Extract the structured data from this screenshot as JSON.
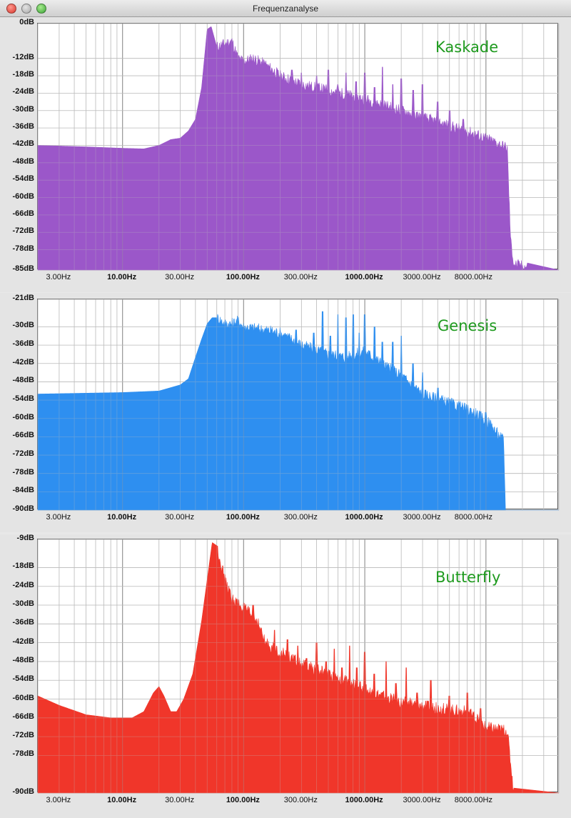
{
  "window": {
    "title": "Frequenzanalyse"
  },
  "colors": {
    "kaskade": "#9b57c9",
    "genesis": "#2e8ff0",
    "butterfly": "#f0362a",
    "legend": "#1e9a1e",
    "grid": "#bdbdbd"
  },
  "chart_data": [
    {
      "type": "area",
      "series": [
        {
          "name": "Kaskade",
          "color": "#9b57c9"
        }
      ],
      "x_scale": "log",
      "xlim": [
        2,
        40000
      ],
      "ylim": [
        -85,
        0
      ],
      "x_ticks": [
        {
          "value": 3,
          "label": "3.00Hz",
          "bold": false
        },
        {
          "value": 10,
          "label": "10.00Hz",
          "bold": true
        },
        {
          "value": 30,
          "label": "30.00Hz",
          "bold": false
        },
        {
          "value": 100,
          "label": "100.00Hz",
          "bold": true
        },
        {
          "value": 300,
          "label": "300.00Hz",
          "bold": false
        },
        {
          "value": 1000,
          "label": "1000.00Hz",
          "bold": true
        },
        {
          "value": 3000,
          "label": "3000.00Hz",
          "bold": false
        },
        {
          "value": 8000,
          "label": "8000.00Hz",
          "bold": false
        }
      ],
      "y_ticks": [
        {
          "value": 0,
          "label": "0dB"
        },
        {
          "value": -12,
          "label": "-12dB"
        },
        {
          "value": -18,
          "label": "-18dB"
        },
        {
          "value": -24,
          "label": "-24dB"
        },
        {
          "value": -30,
          "label": "-30dB"
        },
        {
          "value": -36,
          "label": "-36dB"
        },
        {
          "value": -42,
          "label": "-42dB"
        },
        {
          "value": -48,
          "label": "-48dB"
        },
        {
          "value": -54,
          "label": "-54dB"
        },
        {
          "value": -60,
          "label": "-60dB"
        },
        {
          "value": -66,
          "label": "-66dB"
        },
        {
          "value": -72,
          "label": "-72dB"
        },
        {
          "value": -78,
          "label": "-78dB"
        },
        {
          "value": -85,
          "label": "-85dB"
        }
      ],
      "envelope": [
        [
          2,
          -42
        ],
        [
          5,
          -42.5
        ],
        [
          10,
          -43
        ],
        [
          15,
          -43.2
        ],
        [
          20,
          -42
        ],
        [
          25,
          -40
        ],
        [
          30,
          -39.5
        ],
        [
          35,
          -37
        ],
        [
          40,
          -33
        ],
        [
          45,
          -22
        ],
        [
          50,
          -2
        ],
        [
          54,
          -1
        ],
        [
          60,
          -8
        ],
        [
          70,
          -7
        ],
        [
          80,
          -6
        ],
        [
          90,
          -12
        ],
        [
          100,
          -13
        ],
        [
          120,
          -12
        ],
        [
          150,
          -14
        ],
        [
          200,
          -18
        ],
        [
          300,
          -21
        ],
        [
          500,
          -23
        ],
        [
          1000,
          -26
        ],
        [
          2000,
          -30
        ],
        [
          4000,
          -34
        ],
        [
          8000,
          -38
        ],
        [
          12000,
          -41
        ],
        [
          15000,
          -43
        ],
        [
          16000,
          -75
        ],
        [
          17000,
          -83
        ],
        [
          22000,
          -84
        ],
        [
          40000,
          -85
        ]
      ],
      "peaks": [
        [
          150,
          -14
        ],
        [
          180,
          -18
        ],
        [
          210,
          -20
        ],
        [
          250,
          -16
        ],
        [
          300,
          -17
        ],
        [
          350,
          -22
        ],
        [
          400,
          -18
        ],
        [
          500,
          -16
        ],
        [
          600,
          -21
        ],
        [
          700,
          -17
        ],
        [
          850,
          -20
        ],
        [
          1000,
          -17
        ],
        [
          1200,
          -22
        ],
        [
          1400,
          -15
        ],
        [
          1700,
          -21
        ],
        [
          2000,
          -19
        ],
        [
          2500,
          -23
        ],
        [
          3000,
          -21
        ],
        [
          4000,
          -27
        ],
        [
          5000,
          -30
        ],
        [
          6500,
          -33
        ]
      ]
    },
    {
      "type": "area",
      "series": [
        {
          "name": "Genesis",
          "color": "#2e8ff0"
        }
      ],
      "x_scale": "log",
      "xlim": [
        2,
        40000
      ],
      "ylim": [
        -90,
        -21
      ],
      "x_ticks": [
        {
          "value": 3,
          "label": "3.00Hz",
          "bold": false
        },
        {
          "value": 10,
          "label": "10.00Hz",
          "bold": true
        },
        {
          "value": 30,
          "label": "30.00Hz",
          "bold": false
        },
        {
          "value": 100,
          "label": "100.00Hz",
          "bold": true
        },
        {
          "value": 300,
          "label": "300.00Hz",
          "bold": false
        },
        {
          "value": 1000,
          "label": "1000.00Hz",
          "bold": true
        },
        {
          "value": 3000,
          "label": "3000.00Hz",
          "bold": false
        },
        {
          "value": 8000,
          "label": "8000.00Hz",
          "bold": false
        }
      ],
      "y_ticks": [
        {
          "value": -21,
          "label": "-21dB"
        },
        {
          "value": -30,
          "label": "-30dB"
        },
        {
          "value": -36,
          "label": "-36dB"
        },
        {
          "value": -42,
          "label": "-42dB"
        },
        {
          "value": -48,
          "label": "-48dB"
        },
        {
          "value": -54,
          "label": "-54dB"
        },
        {
          "value": -60,
          "label": "-60dB"
        },
        {
          "value": -66,
          "label": "-66dB"
        },
        {
          "value": -72,
          "label": "-72dB"
        },
        {
          "value": -78,
          "label": "-78dB"
        },
        {
          "value": -84,
          "label": "-84dB"
        },
        {
          "value": -90,
          "label": "-90dB"
        }
      ],
      "envelope": [
        [
          2,
          -52
        ],
        [
          10,
          -51.5
        ],
        [
          20,
          -51
        ],
        [
          30,
          -49
        ],
        [
          35,
          -47
        ],
        [
          40,
          -40
        ],
        [
          45,
          -34
        ],
        [
          50,
          -29
        ],
        [
          55,
          -27
        ],
        [
          60,
          -27
        ],
        [
          70,
          -29
        ],
        [
          80,
          -29
        ],
        [
          90,
          -28
        ],
        [
          100,
          -30
        ],
        [
          150,
          -31
        ],
        [
          200,
          -32
        ],
        [
          300,
          -36
        ],
        [
          500,
          -39
        ],
        [
          700,
          -40
        ],
        [
          1000,
          -38
        ],
        [
          1500,
          -43
        ],
        [
          2000,
          -46
        ],
        [
          3000,
          -52
        ],
        [
          5000,
          -55
        ],
        [
          8000,
          -58
        ],
        [
          11000,
          -62
        ],
        [
          13000,
          -66
        ],
        [
          14000,
          -67
        ],
        [
          14500,
          -90
        ],
        [
          40000,
          -90
        ]
      ],
      "peaks": [
        [
          130,
          -31
        ],
        [
          170,
          -31
        ],
        [
          220,
          -33
        ],
        [
          270,
          -31
        ],
        [
          320,
          -36
        ],
        [
          380,
          -32
        ],
        [
          450,
          -25
        ],
        [
          520,
          -33
        ],
        [
          600,
          -26
        ],
        [
          700,
          -27
        ],
        [
          800,
          -26
        ],
        [
          900,
          -32
        ],
        [
          1000,
          -26
        ],
        [
          1200,
          -30
        ],
        [
          1400,
          -35
        ],
        [
          1700,
          -35
        ],
        [
          2000,
          -33
        ],
        [
          2500,
          -42
        ],
        [
          3000,
          -45
        ],
        [
          4000,
          -50
        ],
        [
          6000,
          -55
        ],
        [
          10000,
          -58
        ]
      ]
    },
    {
      "type": "area",
      "series": [
        {
          "name": "Butterfly",
          "color": "#f0362a"
        }
      ],
      "x_scale": "log",
      "xlim": [
        2,
        40000
      ],
      "ylim": [
        -90,
        -9
      ],
      "x_ticks": [
        {
          "value": 3,
          "label": "3.00Hz",
          "bold": false
        },
        {
          "value": 10,
          "label": "10.00Hz",
          "bold": true
        },
        {
          "value": 30,
          "label": "30.00Hz",
          "bold": false
        },
        {
          "value": 100,
          "label": "100.00Hz",
          "bold": true
        },
        {
          "value": 300,
          "label": "300.00Hz",
          "bold": false
        },
        {
          "value": 1000,
          "label": "1000.00Hz",
          "bold": true
        },
        {
          "value": 3000,
          "label": "3000.00Hz",
          "bold": false
        },
        {
          "value": 8000,
          "label": "8000.00Hz",
          "bold": false
        }
      ],
      "y_ticks": [
        {
          "value": -9,
          "label": "-9dB"
        },
        {
          "value": -18,
          "label": "-18dB"
        },
        {
          "value": -24,
          "label": "-24dB"
        },
        {
          "value": -30,
          "label": "-30dB"
        },
        {
          "value": -36,
          "label": "-36dB"
        },
        {
          "value": -42,
          "label": "-42dB"
        },
        {
          "value": -48,
          "label": "-48dB"
        },
        {
          "value": -54,
          "label": "-54dB"
        },
        {
          "value": -60,
          "label": "-60dB"
        },
        {
          "value": -66,
          "label": "-66dB"
        },
        {
          "value": -72,
          "label": "-72dB"
        },
        {
          "value": -78,
          "label": "-78dB"
        },
        {
          "value": -90,
          "label": "-90dB"
        }
      ],
      "envelope": [
        [
          2,
          -59
        ],
        [
          3,
          -62
        ],
        [
          5,
          -65
        ],
        [
          8,
          -66
        ],
        [
          12,
          -66
        ],
        [
          15,
          -64
        ],
        [
          18,
          -58
        ],
        [
          20,
          -56
        ],
        [
          22,
          -59
        ],
        [
          25,
          -64
        ],
        [
          28,
          -64
        ],
        [
          32,
          -60
        ],
        [
          38,
          -52
        ],
        [
          45,
          -35
        ],
        [
          55,
          -10
        ],
        [
          60,
          -11
        ],
        [
          70,
          -22
        ],
        [
          80,
          -28
        ],
        [
          100,
          -31
        ],
        [
          130,
          -35
        ],
        [
          150,
          -42
        ],
        [
          200,
          -45
        ],
        [
          300,
          -49
        ],
        [
          500,
          -52
        ],
        [
          1000,
          -57
        ],
        [
          2000,
          -61
        ],
        [
          4000,
          -63
        ],
        [
          7000,
          -64
        ],
        [
          10000,
          -69
        ],
        [
          15000,
          -70
        ],
        [
          17000,
          -90
        ],
        [
          40000,
          -90
        ]
      ],
      "peaks": [
        [
          120,
          -30
        ],
        [
          180,
          -38
        ],
        [
          230,
          -41
        ],
        [
          280,
          -43
        ],
        [
          330,
          -47
        ],
        [
          400,
          -42
        ],
        [
          480,
          -48
        ],
        [
          560,
          -44
        ],
        [
          650,
          -50
        ],
        [
          750,
          -43
        ],
        [
          860,
          -50
        ],
        [
          1000,
          -45
        ],
        [
          1200,
          -52
        ],
        [
          1500,
          -48
        ],
        [
          1800,
          -55
        ],
        [
          2200,
          -50
        ],
        [
          2700,
          -58
        ],
        [
          3500,
          -54
        ],
        [
          5000,
          -59
        ],
        [
          7000,
          -58
        ],
        [
          9000,
          -63
        ]
      ]
    }
  ]
}
